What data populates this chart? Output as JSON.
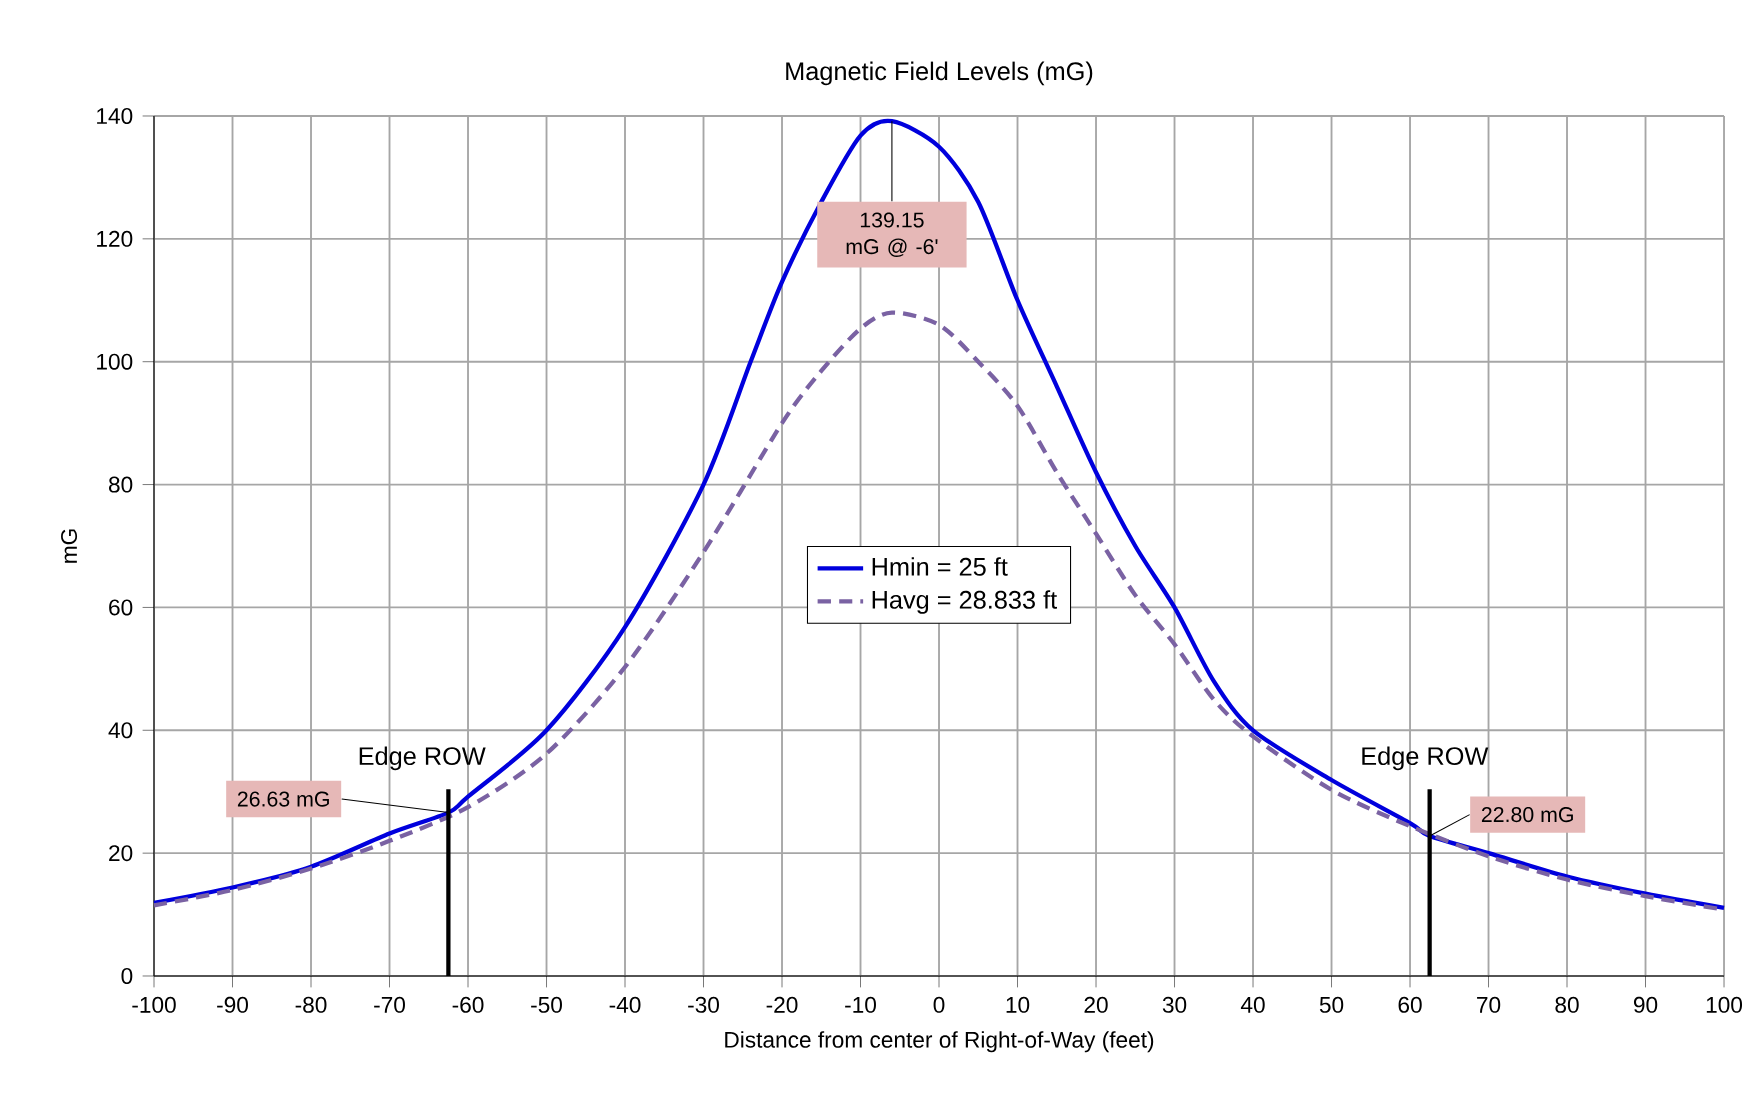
{
  "chart_data": {
    "type": "line",
    "title": "Magnetic Field Levels (mG)",
    "xlabel": "Distance from center of Right-of-Way (feet)",
    "ylabel": "mG",
    "xlim": [
      -100,
      100
    ],
    "xticks": [
      -100,
      -90,
      -80,
      -70,
      -60,
      -50,
      -40,
      -30,
      -20,
      -10,
      0,
      10,
      20,
      30,
      40,
      50,
      60,
      70,
      80,
      90,
      100
    ],
    "ylim": [
      0,
      140
    ],
    "yticks": [
      0,
      20,
      40,
      60,
      80,
      100,
      120,
      140
    ],
    "grid": true,
    "legend": "center",
    "marker": "none",
    "series": [
      {
        "name": "Hmin = 25 ft",
        "color": "#0000dd",
        "line_style": "solid",
        "x": [
          -100,
          -90,
          -80,
          -70,
          -62.5,
          -60,
          -50,
          -40,
          -30,
          -24,
          -20,
          -15,
          -10,
          -6,
          0,
          5,
          10,
          15,
          20,
          25,
          30,
          35,
          40,
          50,
          60,
          62.5,
          70,
          80,
          90,
          100
        ],
        "values": [
          11.9,
          14.4,
          17.8,
          23.2,
          26.6,
          29.2,
          40,
          56.8,
          80,
          100,
          113,
          126,
          136.8,
          139.15,
          135,
          126,
          110,
          96,
          82,
          70,
          60,
          48,
          40,
          31.9,
          24.9,
          22.8,
          20,
          16.2,
          13.4,
          11.1
        ]
      },
      {
        "name": "Havg = 28.833 ft",
        "color": "#7a62a3",
        "line_style": "dashed",
        "x": [
          -100,
          -90,
          -80,
          -70,
          -60,
          -50,
          -40,
          -30,
          -20,
          -15,
          -10,
          -6,
          0,
          5,
          10,
          15,
          20,
          25,
          30,
          35,
          40,
          50,
          60,
          70,
          80,
          90,
          100
        ],
        "values": [
          11.5,
          14,
          17.5,
          22,
          27.5,
          36.2,
          50.3,
          69,
          90,
          98.5,
          105.4,
          108,
          106,
          100,
          92.8,
          82,
          72,
          62,
          54,
          45,
          39,
          30.3,
          24.4,
          19.5,
          15.7,
          13,
          10.8
        ]
      }
    ],
    "ref_lines": [
      {
        "axis": "x",
        "value": -62.5,
        "label": "Edge ROW",
        "color": "#000000"
      },
      {
        "axis": "x",
        "value": 62.5,
        "label": "Edge ROW",
        "color": "#000000"
      }
    ],
    "annotations": [
      {
        "text": "139.15 mG @ -6'",
        "x": -6,
        "y": 139.15
      },
      {
        "text": "26.63 mG",
        "x": -62.5,
        "y": 26.63
      },
      {
        "text": "22.80 mG",
        "x": 62.5,
        "y": 22.8
      }
    ]
  }
}
